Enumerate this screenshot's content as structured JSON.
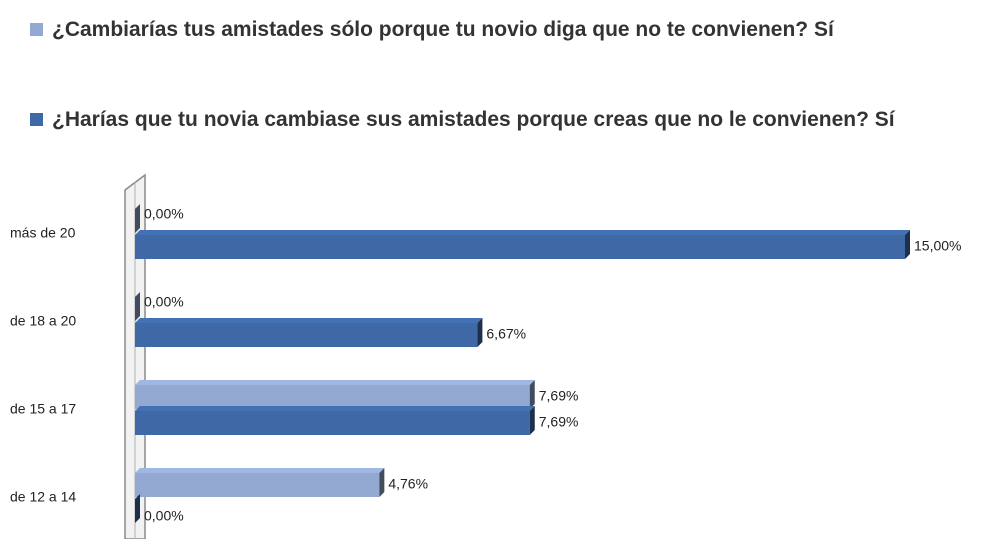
{
  "chart_data": {
    "type": "bar",
    "orientation": "horizontal",
    "categories": [
      "más de 20",
      "de 18 a 20",
      "de 15 a 17",
      "de 12 a 14"
    ],
    "series": [
      {
        "name": "¿Cambiarías tus amistades sólo porque tu novio diga que no te convienen? Sí",
        "color": "#93a9d2",
        "values": [
          0,
          0,
          7.69,
          4.76
        ],
        "value_labels": [
          "0,00%",
          "0,00%",
          "7,69%",
          "4,76%"
        ]
      },
      {
        "name": "¿Harías que tu novia cambiase sus amistades porque creas que no le convienen? Sí",
        "color": "#3f69a6",
        "values": [
          15,
          6.67,
          7.69,
          0
        ],
        "value_labels": [
          "15,00%",
          "6,67%",
          "7,69%",
          "0,00%"
        ]
      }
    ]
  }
}
